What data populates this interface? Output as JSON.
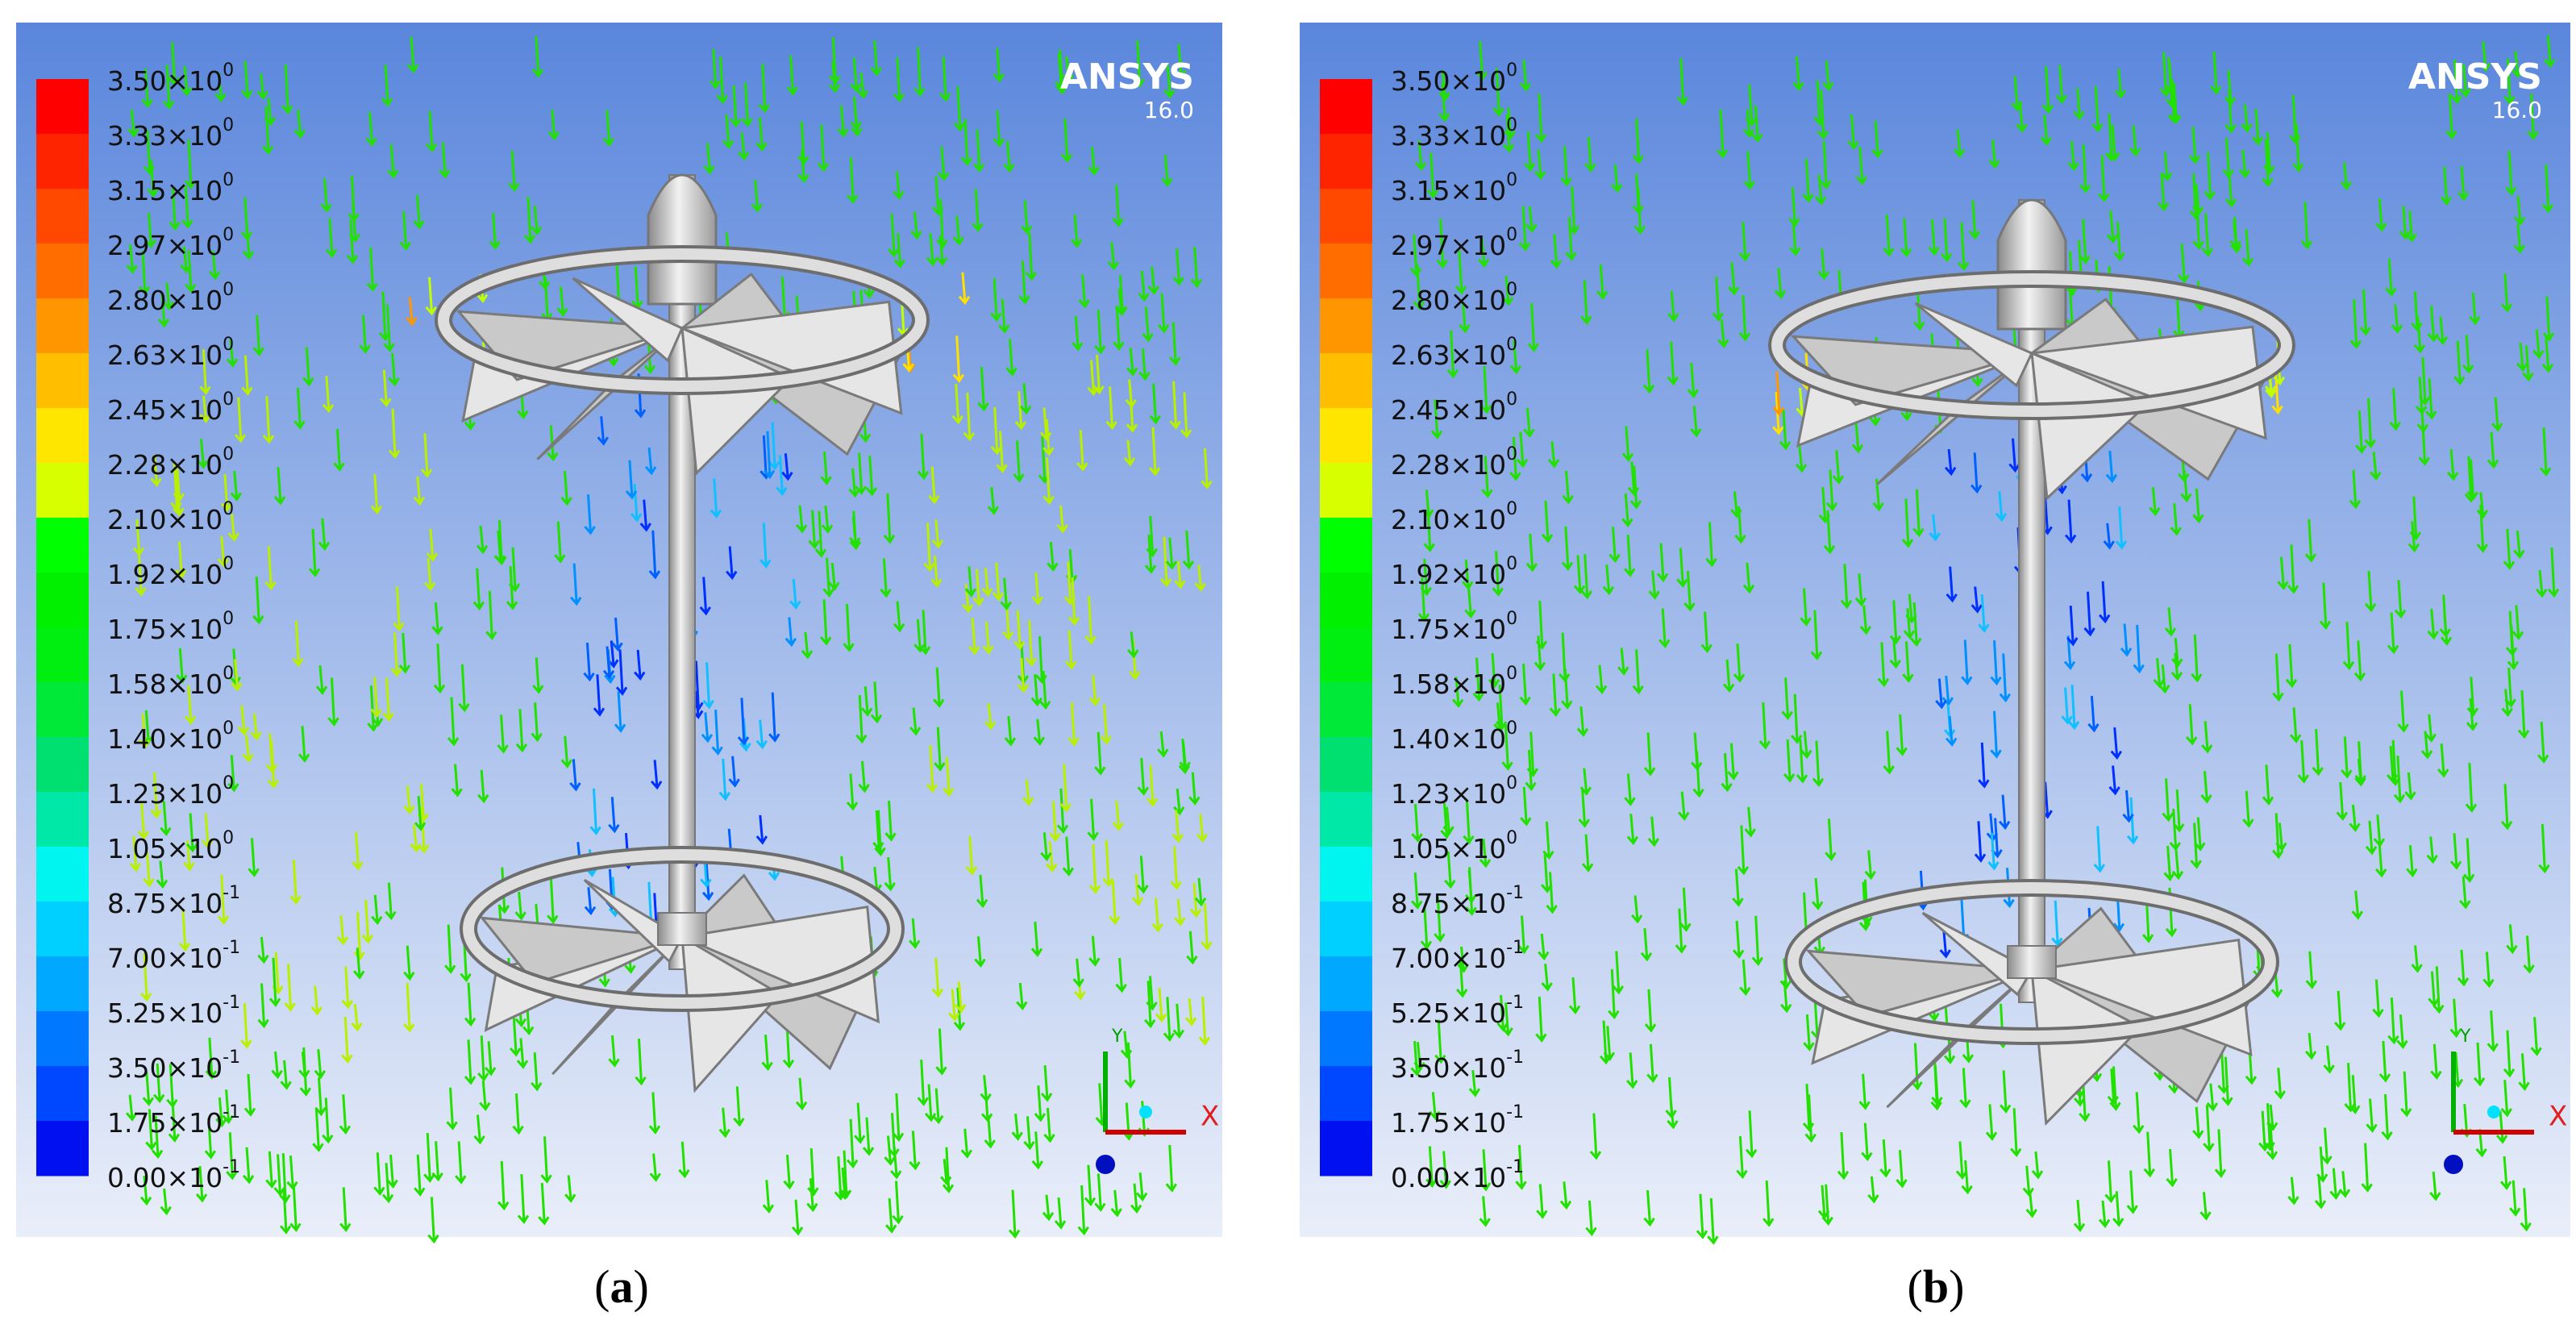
{
  "panels": [
    {
      "brand": "ANSYS",
      "version": "16.0",
      "axis_x": "X",
      "axis_y": "Y",
      "caption": {
        "open": "(",
        "letter": "a",
        "close": ")"
      },
      "legend": [
        {
          "mantissa": "3.50×10",
          "exponent": "0"
        },
        {
          "mantissa": "3.33×10",
          "exponent": "0"
        },
        {
          "mantissa": "3.15×10",
          "exponent": "0"
        },
        {
          "mantissa": "2.97×10",
          "exponent": "0"
        },
        {
          "mantissa": "2.80×10",
          "exponent": "0"
        },
        {
          "mantissa": "2.63×10",
          "exponent": "0"
        },
        {
          "mantissa": "2.45×10",
          "exponent": "0"
        },
        {
          "mantissa": "2.28×10",
          "exponent": "0"
        },
        {
          "mantissa": "2.10×10",
          "exponent": "0"
        },
        {
          "mantissa": "1.92×10",
          "exponent": "0"
        },
        {
          "mantissa": "1.75×10",
          "exponent": "0"
        },
        {
          "mantissa": "1.58×10",
          "exponent": "0"
        },
        {
          "mantissa": "1.40×10",
          "exponent": "0"
        },
        {
          "mantissa": "1.23×10",
          "exponent": "0"
        },
        {
          "mantissa": "1.05×10",
          "exponent": "0"
        },
        {
          "mantissa": "8.75×10",
          "exponent": "-1"
        },
        {
          "mantissa": "7.00×10",
          "exponent": "-1"
        },
        {
          "mantissa": "5.25×10",
          "exponent": "-1"
        },
        {
          "mantissa": "3.50×10",
          "exponent": "-1"
        },
        {
          "mantissa": "1.75×10",
          "exponent": "-1"
        },
        {
          "mantissa": "0.00×10",
          "exponent": "-1"
        }
      ]
    },
    {
      "brand": "ANSYS",
      "version": "16.0",
      "axis_x": "X",
      "axis_y": "Y",
      "caption": {
        "open": "(",
        "letter": "b",
        "close": ")"
      },
      "legend": [
        {
          "mantissa": "3.50×10",
          "exponent": "0"
        },
        {
          "mantissa": "3.33×10",
          "exponent": "0"
        },
        {
          "mantissa": "3.15×10",
          "exponent": "0"
        },
        {
          "mantissa": "2.97×10",
          "exponent": "0"
        },
        {
          "mantissa": "2.80×10",
          "exponent": "0"
        },
        {
          "mantissa": "2.63×10",
          "exponent": "0"
        },
        {
          "mantissa": "2.45×10",
          "exponent": "0"
        },
        {
          "mantissa": "2.28×10",
          "exponent": "0"
        },
        {
          "mantissa": "2.10×10",
          "exponent": "0"
        },
        {
          "mantissa": "1.92×10",
          "exponent": "0"
        },
        {
          "mantissa": "1.75×10",
          "exponent": "0"
        },
        {
          "mantissa": "1.58×10",
          "exponent": "0"
        },
        {
          "mantissa": "1.40×10",
          "exponent": "0"
        },
        {
          "mantissa": "1.23×10",
          "exponent": "0"
        },
        {
          "mantissa": "1.05×10",
          "exponent": "0"
        },
        {
          "mantissa": "8.75×10",
          "exponent": "-1"
        },
        {
          "mantissa": "7.00×10",
          "exponent": "-1"
        },
        {
          "mantissa": "5.25×10",
          "exponent": "-1"
        },
        {
          "mantissa": "3.50×10",
          "exponent": "-1"
        },
        {
          "mantissa": "1.75×10",
          "exponent": "-1"
        },
        {
          "mantissa": "0.00×10",
          "exponent": "-1"
        }
      ]
    }
  ]
}
